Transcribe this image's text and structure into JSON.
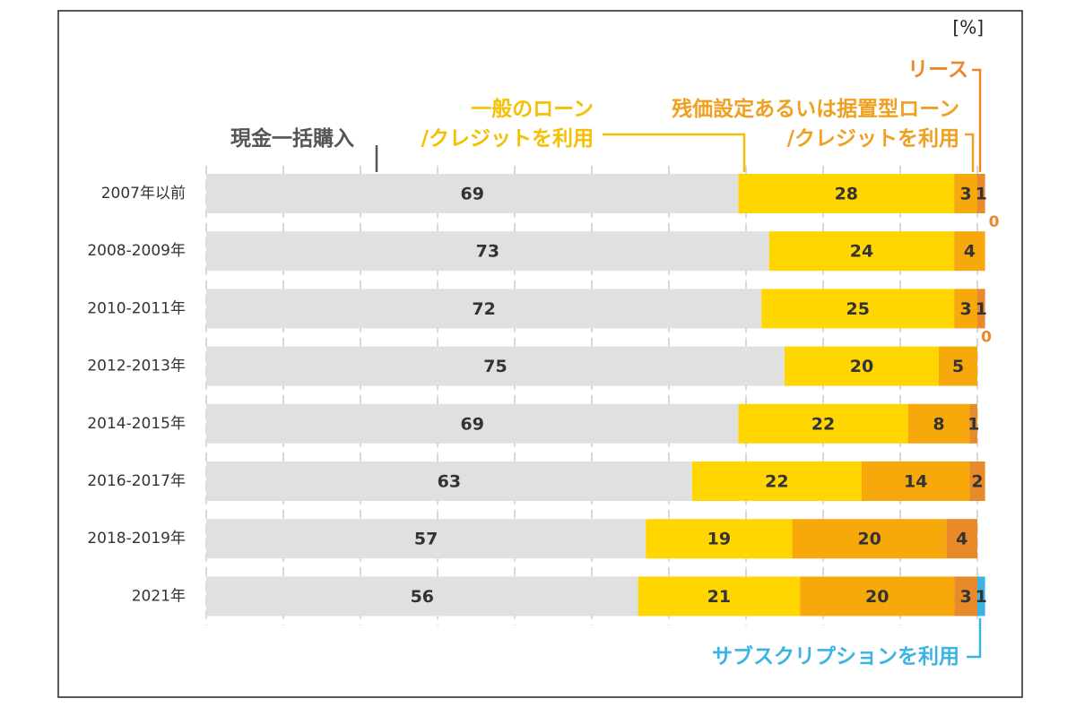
{
  "chart_data": {
    "type": "stacked-bar",
    "orientation": "horizontal",
    "unit": "[%]",
    "categories": [
      "2007年以前",
      "2008-2009年",
      "2010-2011年",
      "2012-2013年",
      "2014-2015年",
      "2016-2017年",
      "2018-2019年",
      "2021年"
    ],
    "series": [
      {
        "name": "現金一括購入",
        "color": "#e0e0e0",
        "label_color": "#555555",
        "values": [
          69,
          73,
          72,
          75,
          69,
          63,
          57,
          56
        ]
      },
      {
        "name": "一般のローン\n/クレジットを利用",
        "color": "#ffd600",
        "label_color": "#f5c000",
        "values": [
          28,
          24,
          25,
          20,
          22,
          22,
          19,
          21
        ]
      },
      {
        "name": "残価設定あるいは据置型ローン\n/クレジットを利用",
        "color": "#f7a90b",
        "label_color": "#f0a020",
        "values": [
          3,
          4,
          3,
          5,
          8,
          14,
          20,
          20
        ]
      },
      {
        "name": "リース",
        "color": "#e8892a",
        "label_color": "#e8892a",
        "values": [
          1,
          0,
          1,
          0,
          1,
          2,
          4,
          3
        ]
      },
      {
        "name": "サブスクリプションを利用",
        "color": "#3bb4e5",
        "label_color": "#3bb4e5",
        "values": [
          null,
          null,
          null,
          null,
          null,
          null,
          null,
          1
        ]
      }
    ],
    "xlim": [
      0,
      100
    ],
    "xticks": [
      0,
      10,
      20,
      30,
      40,
      50,
      60,
      70,
      80,
      90,
      100
    ],
    "grid": true
  }
}
